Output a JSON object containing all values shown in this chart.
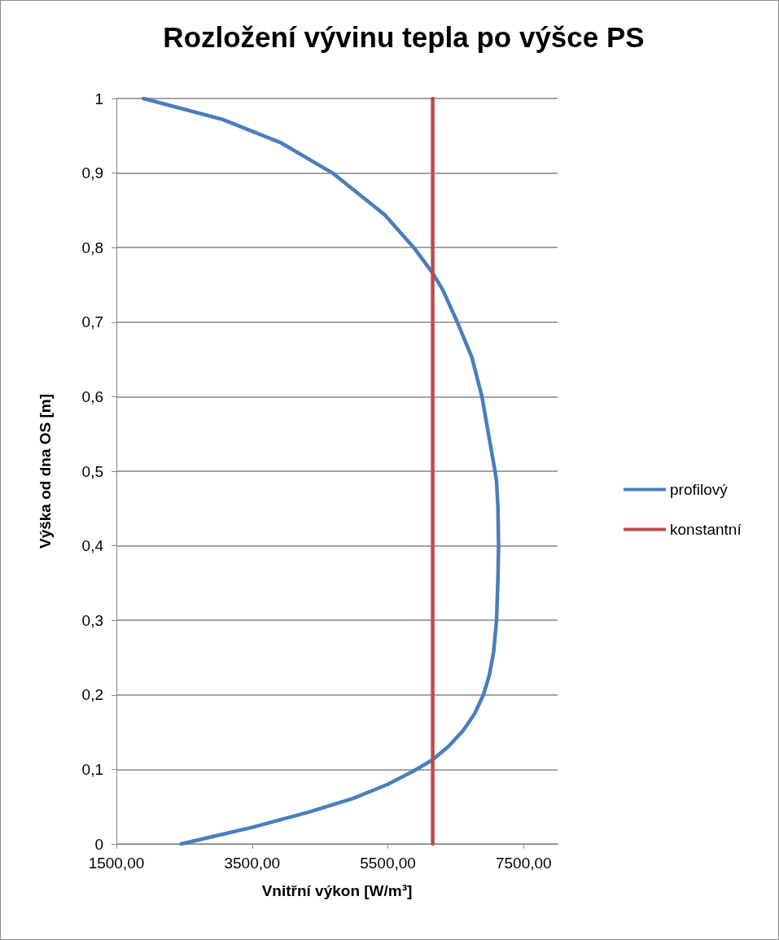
{
  "chart_data": {
    "type": "line",
    "title": "Rozložení vývinu tepla po výšce PS",
    "xlabel": "Vnitřní výkon [W/m³]",
    "ylabel": "Výška od dna OS [m]",
    "series": [
      {
        "name": "profilový",
        "color": "#4a7ebb",
        "x": [
          2453,
          3488,
          4343,
          4984,
          5497,
          5881,
          6159,
          6394,
          6608,
          6779,
          6907,
          6993,
          7057,
          7100,
          7121,
          7130,
          7121,
          7100,
          7078,
          6993,
          6886,
          6736,
          6523,
          6309,
          6159,
          5881,
          5454,
          4684,
          3915,
          3060,
          1898
        ],
        "values": [
          0,
          0.022,
          0.043,
          0.061,
          0.08,
          0.098,
          0.113,
          0.131,
          0.152,
          0.175,
          0.2,
          0.226,
          0.257,
          0.3,
          0.354,
          0.4,
          0.452,
          0.487,
          0.5,
          0.544,
          0.6,
          0.653,
          0.7,
          0.743,
          0.766,
          0.8,
          0.844,
          0.9,
          0.941,
          0.972,
          1
        ]
      },
      {
        "name": "konstantní",
        "color": "#be4b48",
        "x": [
          6160,
          6160
        ],
        "values": [
          0,
          1
        ]
      }
    ],
    "xlim": [
      1500,
      8000
    ],
    "xticks": [
      {
        "value": 1500,
        "label": "1500,00"
      },
      {
        "value": 3500,
        "label": "3500,00"
      },
      {
        "value": 5500,
        "label": "5500,00"
      },
      {
        "value": 7500,
        "label": "7500,00"
      }
    ],
    "ylim": [
      0,
      1
    ],
    "yticks": [
      0,
      {
        "value": 0.1,
        "label": "0,1"
      },
      {
        "value": 0.2,
        "label": "0,2"
      },
      {
        "value": 0.3,
        "label": "0,3"
      },
      {
        "value": 0.4,
        "label": "0,4"
      },
      {
        "value": 0.5,
        "label": "0,5"
      },
      {
        "value": 0.6,
        "label": "0,6"
      },
      {
        "value": 0.7,
        "label": "0,7"
      },
      {
        "value": 0.8,
        "label": "0,8"
      },
      {
        "value": 0.9,
        "label": "0,9"
      },
      1
    ],
    "grid": "y",
    "legend": "right",
    "marker": "none",
    "line_style": "solid"
  }
}
